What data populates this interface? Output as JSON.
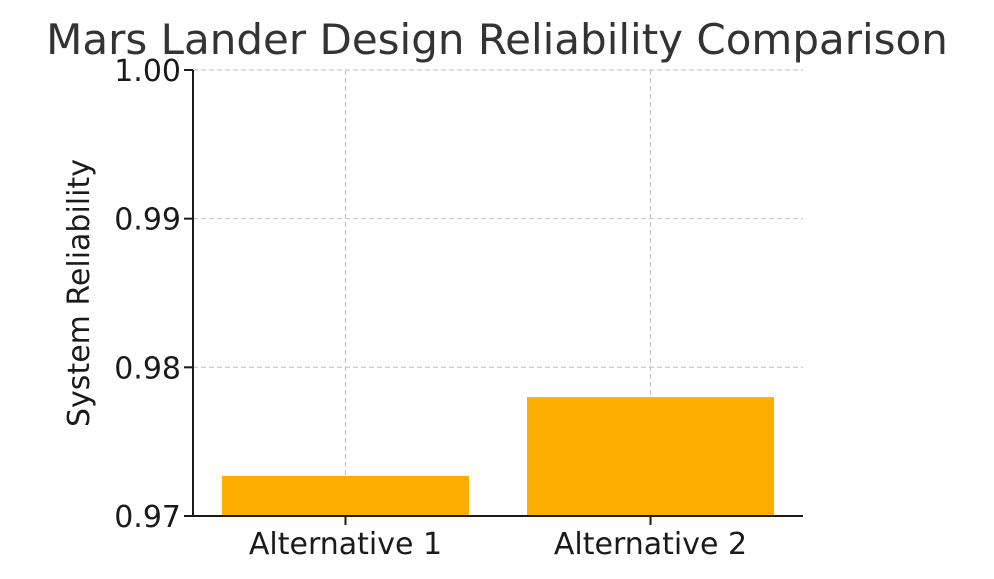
{
  "chart_data": {
    "type": "bar",
    "title": "Mars Lander Design Reliability Comparison",
    "xlabel": "",
    "ylabel": "System Reliability",
    "categories": [
      "Alternative 1",
      "Alternative 2"
    ],
    "values": [
      0.9727,
      0.978
    ],
    "ylim": [
      0.97,
      1.0
    ],
    "yticks": [
      0.97,
      0.98,
      0.99,
      1.0
    ],
    "ytick_labels": [
      "0.97",
      "0.98",
      "0.99",
      "1.00"
    ],
    "bar_color": "#FFAE00",
    "grid": true,
    "legend": "none"
  }
}
